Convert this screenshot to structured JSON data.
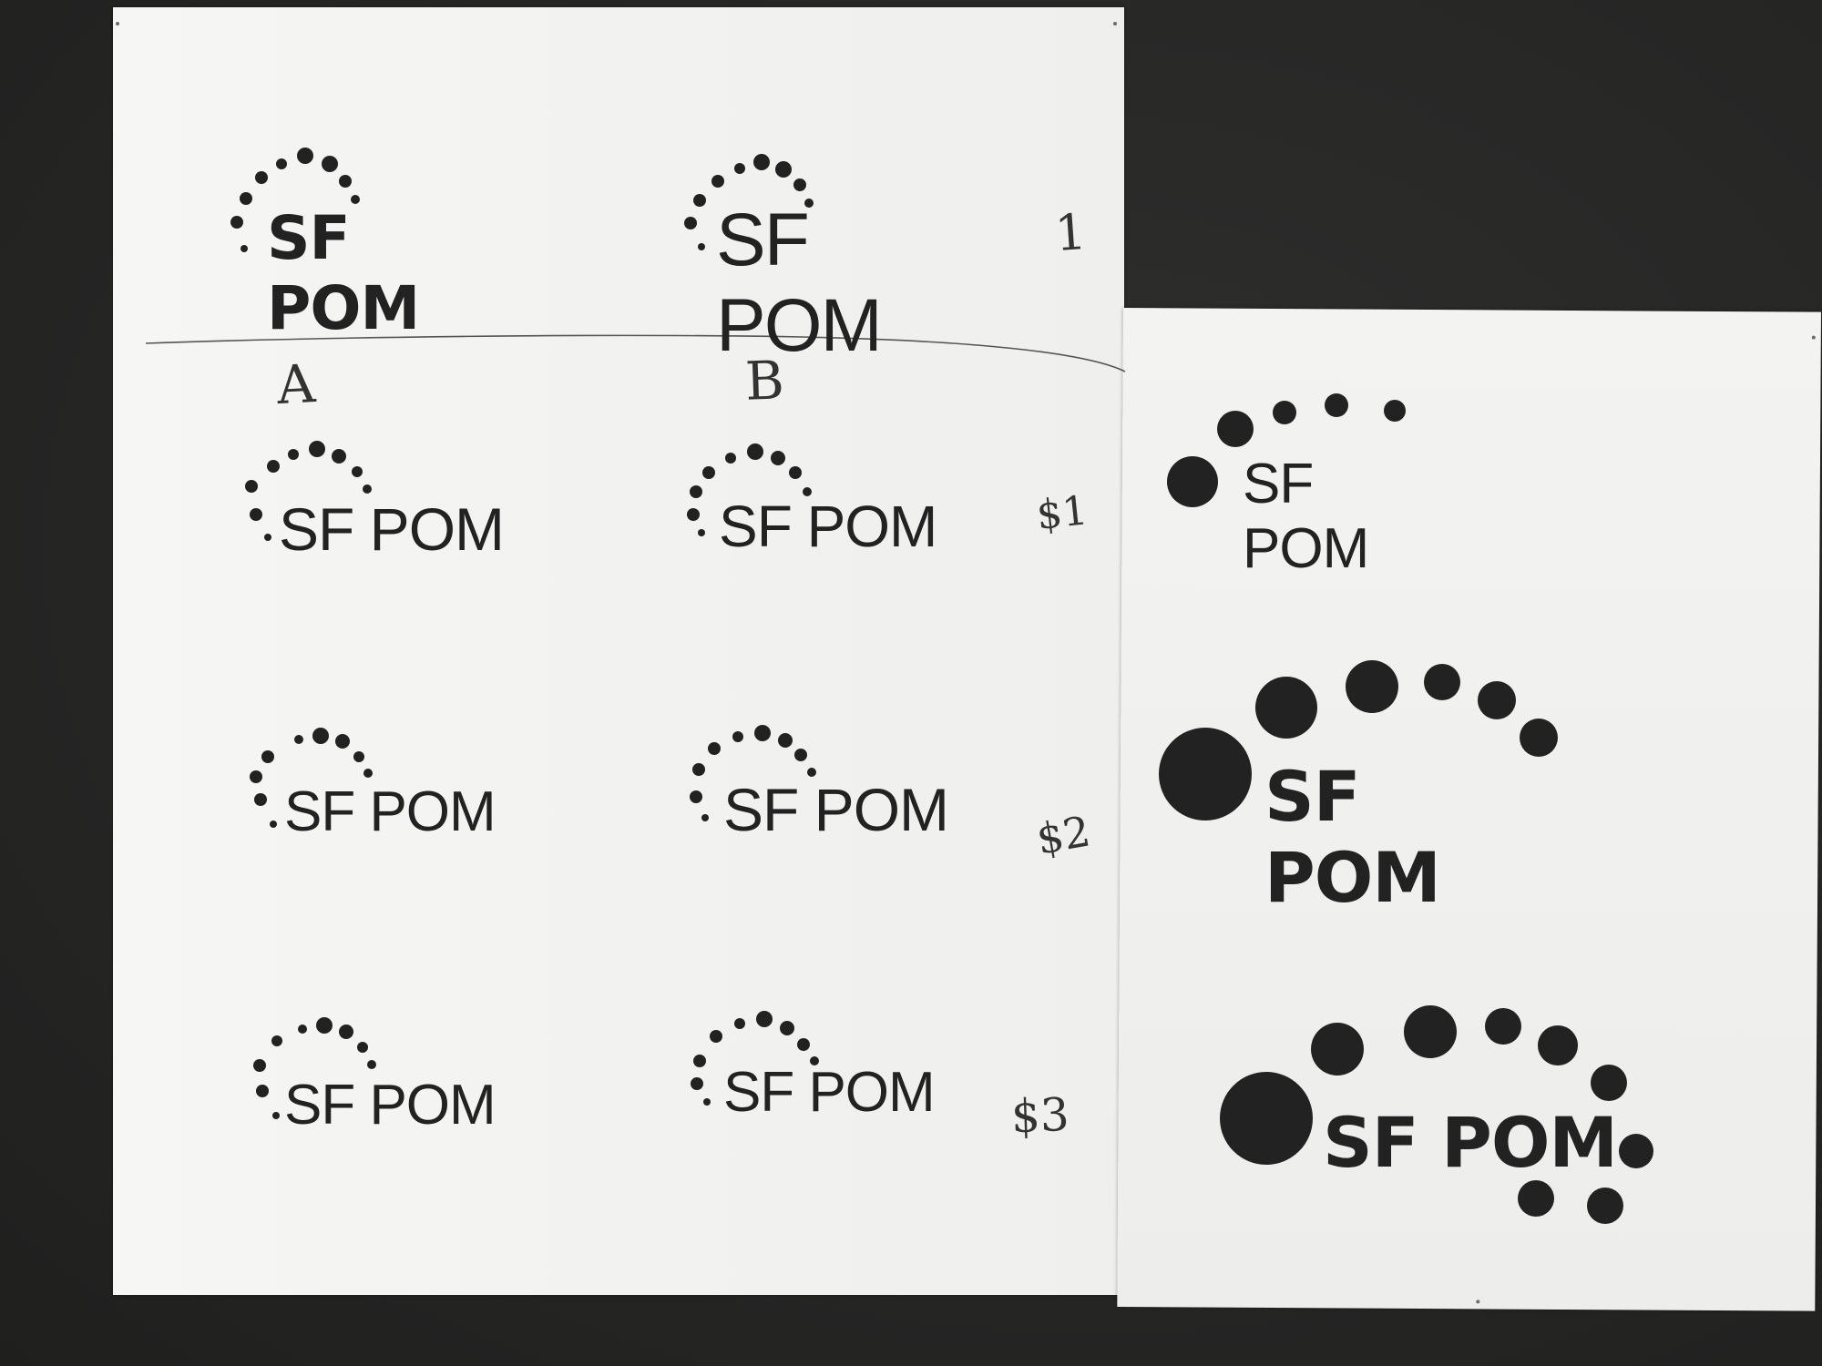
{
  "photo": {
    "subject": "logo-proof-sheets",
    "ink_color": "#222222",
    "paper_color": "#f4f4f2",
    "background_color": "#2a2a29"
  },
  "left_sheet": {
    "top_row": [
      {
        "wordmark": "SF POM",
        "weight": "bold"
      },
      {
        "wordmark": "SF POM",
        "weight": "light"
      }
    ],
    "top_row_mark": "1",
    "column_labels": {
      "a": "A",
      "b": "B"
    },
    "grid": [
      {
        "a": "SF POM",
        "b": "SF POM",
        "price": "$1"
      },
      {
        "a": "SF POM",
        "b": "SF POM",
        "price": "$2"
      },
      {
        "a": "SF POM",
        "b": "SF POM",
        "price": "$3"
      }
    ]
  },
  "right_sheet": {
    "logos": [
      {
        "wordmark": "SF POM",
        "style": "light-large-dots"
      },
      {
        "wordmark": "SF POM",
        "style": "bold-large-dots"
      },
      {
        "wordmark": "SF POM",
        "style": "bold-dots-wrapping"
      }
    ]
  }
}
